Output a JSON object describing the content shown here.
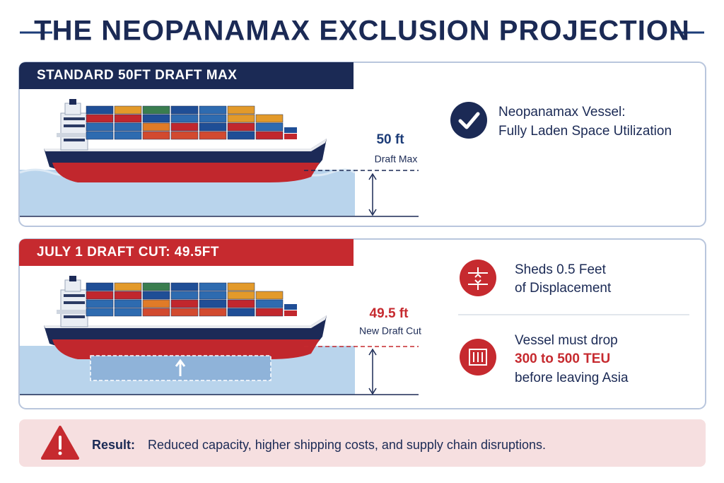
{
  "header": {
    "title": "THE NEOPANAMAX EXCLUSION PROJECTION"
  },
  "standard_panel": {
    "heading": "STANDARD 50FT DRAFT MAX",
    "draft_value": "50 ft",
    "draft_label": "Draft Max",
    "info_title": "Neopanamax Vessel:",
    "info_text": "Fully Laden Space Utilization"
  },
  "cut_panel": {
    "heading": "JULY 1 DRAFT CUT: 49.5FT",
    "draft_value": "49.5 ft",
    "draft_label": "New Draft Cut",
    "items": [
      {
        "lines": [
          "Sheds 0.5 Feet",
          "of Displacement"
        ]
      },
      {
        "lines": [
          "Vessel must drop",
          "300 to 500 TEU",
          "before leaving Asia"
        ]
      }
    ]
  },
  "result": {
    "label": "Result:",
    "text": "Reduced capacity, higher shipping costs, and supply chain disruptions."
  }
}
